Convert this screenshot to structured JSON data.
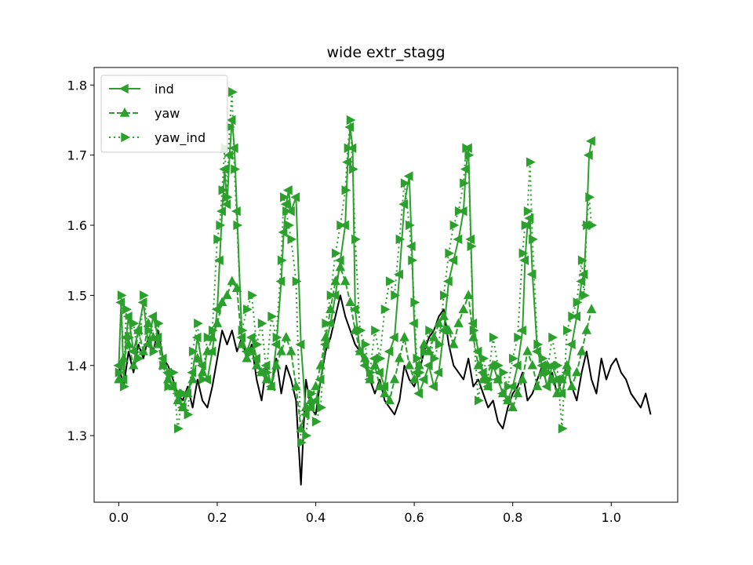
{
  "chart_data": {
    "type": "line",
    "title": "wide extr_stagg",
    "xlabel": "",
    "ylabel": "",
    "xlim": [
      -0.05,
      1.135
    ],
    "ylim": [
      1.205,
      1.825
    ],
    "xticks": [
      0.0,
      0.2,
      0.4,
      0.6,
      0.8,
      1.0
    ],
    "xtick_labels": [
      "0.0",
      "0.2",
      "0.4",
      "0.6",
      "0.8",
      "1.0"
    ],
    "yticks": [
      1.3,
      1.4,
      1.5,
      1.6,
      1.7,
      1.8
    ],
    "ytick_labels": [
      "1.3",
      "1.4",
      "1.5",
      "1.6",
      "1.7",
      "1.8"
    ],
    "legend_position": "upper-left",
    "grid": false,
    "colors": {
      "baseline": "#000000",
      "series": "#2ca02c"
    },
    "baseline": {
      "color": "#000000",
      "x": [
        0.0,
        0.01,
        0.02,
        0.03,
        0.04,
        0.05,
        0.06,
        0.07,
        0.08,
        0.09,
        0.1,
        0.11,
        0.12,
        0.13,
        0.14,
        0.15,
        0.16,
        0.17,
        0.18,
        0.19,
        0.2,
        0.21,
        0.22,
        0.23,
        0.24,
        0.25,
        0.26,
        0.27,
        0.28,
        0.29,
        0.3,
        0.31,
        0.32,
        0.33,
        0.34,
        0.35,
        0.36,
        0.37,
        0.38,
        0.39,
        0.4,
        0.41,
        0.42,
        0.43,
        0.44,
        0.45,
        0.46,
        0.47,
        0.48,
        0.49,
        0.5,
        0.51,
        0.52,
        0.53,
        0.54,
        0.55,
        0.56,
        0.57,
        0.58,
        0.59,
        0.6,
        0.61,
        0.62,
        0.63,
        0.64,
        0.65,
        0.66,
        0.67,
        0.68,
        0.69,
        0.7,
        0.71,
        0.72,
        0.73,
        0.74,
        0.75,
        0.76,
        0.77,
        0.78,
        0.79,
        0.8,
        0.81,
        0.82,
        0.83,
        0.84,
        0.85,
        0.86,
        0.87,
        0.88,
        0.89,
        0.9,
        0.91,
        0.92,
        0.93,
        0.94,
        0.95,
        0.96,
        0.97,
        0.98,
        0.99,
        1.0,
        1.01,
        1.02,
        1.03,
        1.04,
        1.05,
        1.06,
        1.07,
        1.08
      ],
      "y": [
        1.4,
        1.37,
        1.42,
        1.39,
        1.43,
        1.41,
        1.44,
        1.42,
        1.45,
        1.41,
        1.4,
        1.38,
        1.36,
        1.35,
        1.37,
        1.34,
        1.38,
        1.35,
        1.34,
        1.37,
        1.41,
        1.45,
        1.43,
        1.45,
        1.42,
        1.44,
        1.41,
        1.43,
        1.38,
        1.35,
        1.4,
        1.37,
        1.41,
        1.36,
        1.4,
        1.38,
        1.35,
        1.23,
        1.38,
        1.34,
        1.33,
        1.38,
        1.42,
        1.44,
        1.47,
        1.5,
        1.47,
        1.45,
        1.43,
        1.42,
        1.4,
        1.38,
        1.36,
        1.38,
        1.35,
        1.34,
        1.33,
        1.35,
        1.4,
        1.38,
        1.37,
        1.39,
        1.42,
        1.44,
        1.45,
        1.47,
        1.48,
        1.43,
        1.4,
        1.39,
        1.38,
        1.41,
        1.37,
        1.38,
        1.36,
        1.34,
        1.35,
        1.32,
        1.31,
        1.34,
        1.36,
        1.37,
        1.39,
        1.35,
        1.36,
        1.38,
        1.4,
        1.37,
        1.39,
        1.36,
        1.38,
        1.4,
        1.37,
        1.35,
        1.39,
        1.42,
        1.38,
        1.36,
        1.41,
        1.38,
        1.4,
        1.41,
        1.39,
        1.38,
        1.36,
        1.35,
        1.34,
        1.36,
        1.33
      ]
    },
    "series": [
      {
        "name": "ind",
        "marker": "triangle-left",
        "dash": "solid",
        "x": [
          0.0,
          0.005,
          0.01,
          0.015,
          0.02,
          0.03,
          0.04,
          0.05,
          0.06,
          0.07,
          0.08,
          0.09,
          0.1,
          0.11,
          0.12,
          0.13,
          0.14,
          0.15,
          0.16,
          0.17,
          0.18,
          0.19,
          0.2,
          0.205,
          0.21,
          0.215,
          0.22,
          0.225,
          0.23,
          0.235,
          0.24,
          0.25,
          0.26,
          0.27,
          0.28,
          0.29,
          0.3,
          0.31,
          0.32,
          0.33,
          0.335,
          0.34,
          0.345,
          0.35,
          0.36,
          0.37,
          0.38,
          0.39,
          0.4,
          0.41,
          0.42,
          0.43,
          0.44,
          0.45,
          0.46,
          0.465,
          0.47,
          0.475,
          0.48,
          0.49,
          0.5,
          0.51,
          0.52,
          0.53,
          0.54,
          0.55,
          0.56,
          0.57,
          0.58,
          0.59,
          0.595,
          0.6,
          0.605,
          0.61,
          0.62,
          0.63,
          0.64,
          0.65,
          0.66,
          0.67,
          0.68,
          0.69,
          0.7,
          0.705,
          0.71,
          0.715,
          0.72,
          0.73,
          0.74,
          0.75,
          0.76,
          0.77,
          0.78,
          0.79,
          0.8,
          0.81,
          0.82,
          0.825,
          0.83,
          0.835,
          0.84,
          0.85,
          0.86,
          0.87,
          0.88,
          0.89,
          0.9,
          0.91,
          0.92,
          0.93,
          0.94,
          0.945,
          0.95,
          0.955,
          0.96
        ],
        "y": [
          1.4,
          1.49,
          1.38,
          1.44,
          1.47,
          1.42,
          1.45,
          1.49,
          1.43,
          1.47,
          1.44,
          1.41,
          1.39,
          1.37,
          1.36,
          1.34,
          1.36,
          1.39,
          1.44,
          1.4,
          1.38,
          1.42,
          1.48,
          1.55,
          1.62,
          1.68,
          1.63,
          1.7,
          1.75,
          1.71,
          1.62,
          1.44,
          1.42,
          1.44,
          1.41,
          1.39,
          1.4,
          1.37,
          1.43,
          1.52,
          1.59,
          1.63,
          1.65,
          1.62,
          1.64,
          1.43,
          1.33,
          1.34,
          1.35,
          1.38,
          1.43,
          1.46,
          1.5,
          1.55,
          1.6,
          1.69,
          1.74,
          1.71,
          1.48,
          1.42,
          1.4,
          1.38,
          1.41,
          1.39,
          1.37,
          1.42,
          1.44,
          1.53,
          1.63,
          1.67,
          1.57,
          1.46,
          1.39,
          1.36,
          1.38,
          1.4,
          1.37,
          1.39,
          1.45,
          1.52,
          1.55,
          1.58,
          1.62,
          1.68,
          1.71,
          1.58,
          1.46,
          1.42,
          1.39,
          1.37,
          1.4,
          1.38,
          1.36,
          1.35,
          1.37,
          1.4,
          1.45,
          1.55,
          1.6,
          1.61,
          1.53,
          1.42,
          1.4,
          1.37,
          1.4,
          1.38,
          1.36,
          1.39,
          1.43,
          1.47,
          1.52,
          1.53,
          1.6,
          1.7,
          1.72
        ]
      },
      {
        "name": "yaw",
        "marker": "triangle-up",
        "dash": "dashed",
        "x": [
          0.0,
          0.01,
          0.02,
          0.03,
          0.04,
          0.05,
          0.06,
          0.07,
          0.08,
          0.09,
          0.1,
          0.11,
          0.12,
          0.13,
          0.14,
          0.15,
          0.16,
          0.17,
          0.18,
          0.19,
          0.2,
          0.21,
          0.22,
          0.23,
          0.24,
          0.25,
          0.26,
          0.27,
          0.28,
          0.29,
          0.3,
          0.31,
          0.32,
          0.33,
          0.34,
          0.35,
          0.36,
          0.37,
          0.38,
          0.39,
          0.4,
          0.41,
          0.42,
          0.43,
          0.44,
          0.45,
          0.46,
          0.47,
          0.48,
          0.49,
          0.5,
          0.51,
          0.52,
          0.53,
          0.54,
          0.55,
          0.56,
          0.57,
          0.58,
          0.59,
          0.6,
          0.61,
          0.62,
          0.63,
          0.64,
          0.65,
          0.66,
          0.67,
          0.68,
          0.69,
          0.7,
          0.71,
          0.72,
          0.73,
          0.74,
          0.75,
          0.76,
          0.77,
          0.78,
          0.79,
          0.8,
          0.81,
          0.82,
          0.83,
          0.84,
          0.85,
          0.86,
          0.87,
          0.88,
          0.89,
          0.9,
          0.91,
          0.92,
          0.93,
          0.94,
          0.95,
          0.96
        ],
        "y": [
          1.38,
          1.41,
          1.43,
          1.4,
          1.45,
          1.42,
          1.46,
          1.44,
          1.43,
          1.4,
          1.38,
          1.37,
          1.35,
          1.34,
          1.36,
          1.38,
          1.41,
          1.39,
          1.42,
          1.44,
          1.46,
          1.49,
          1.5,
          1.52,
          1.51,
          1.43,
          1.41,
          1.42,
          1.4,
          1.39,
          1.38,
          1.37,
          1.4,
          1.42,
          1.44,
          1.42,
          1.37,
          1.31,
          1.34,
          1.35,
          1.37,
          1.4,
          1.44,
          1.48,
          1.52,
          1.54,
          1.52,
          1.49,
          1.45,
          1.42,
          1.41,
          1.38,
          1.4,
          1.37,
          1.36,
          1.35,
          1.38,
          1.41,
          1.44,
          1.4,
          1.38,
          1.4,
          1.43,
          1.42,
          1.44,
          1.46,
          1.47,
          1.45,
          1.43,
          1.46,
          1.48,
          1.5,
          1.44,
          1.4,
          1.38,
          1.37,
          1.4,
          1.38,
          1.36,
          1.35,
          1.34,
          1.36,
          1.38,
          1.42,
          1.4,
          1.37,
          1.39,
          1.4,
          1.38,
          1.36,
          1.38,
          1.4,
          1.37,
          1.39,
          1.42,
          1.45,
          1.48
        ]
      },
      {
        "name": "yaw_ind",
        "marker": "triangle-right",
        "dash": "dotted",
        "x": [
          0.0,
          0.005,
          0.01,
          0.015,
          0.02,
          0.03,
          0.04,
          0.05,
          0.06,
          0.07,
          0.08,
          0.09,
          0.1,
          0.11,
          0.12,
          0.13,
          0.14,
          0.15,
          0.16,
          0.17,
          0.18,
          0.19,
          0.2,
          0.205,
          0.21,
          0.215,
          0.22,
          0.225,
          0.23,
          0.235,
          0.24,
          0.25,
          0.26,
          0.27,
          0.28,
          0.29,
          0.3,
          0.31,
          0.32,
          0.33,
          0.335,
          0.34,
          0.345,
          0.35,
          0.36,
          0.37,
          0.38,
          0.39,
          0.4,
          0.41,
          0.42,
          0.43,
          0.44,
          0.45,
          0.46,
          0.465,
          0.47,
          0.475,
          0.48,
          0.49,
          0.5,
          0.51,
          0.52,
          0.53,
          0.54,
          0.55,
          0.56,
          0.57,
          0.58,
          0.59,
          0.595,
          0.6,
          0.605,
          0.61,
          0.62,
          0.63,
          0.64,
          0.65,
          0.66,
          0.67,
          0.68,
          0.69,
          0.7,
          0.705,
          0.71,
          0.715,
          0.72,
          0.73,
          0.74,
          0.75,
          0.76,
          0.77,
          0.78,
          0.79,
          0.8,
          0.81,
          0.82,
          0.825,
          0.83,
          0.835,
          0.84,
          0.85,
          0.86,
          0.87,
          0.88,
          0.89,
          0.9,
          0.91,
          0.92,
          0.93,
          0.94,
          0.945,
          0.95,
          0.955,
          0.96
        ],
        "y": [
          1.39,
          1.5,
          1.37,
          1.48,
          1.44,
          1.46,
          1.41,
          1.5,
          1.45,
          1.42,
          1.46,
          1.4,
          1.37,
          1.39,
          1.31,
          1.36,
          1.33,
          1.42,
          1.46,
          1.38,
          1.44,
          1.45,
          1.58,
          1.6,
          1.65,
          1.71,
          1.64,
          1.74,
          1.79,
          1.68,
          1.6,
          1.45,
          1.48,
          1.5,
          1.43,
          1.46,
          1.39,
          1.47,
          1.44,
          1.55,
          1.64,
          1.62,
          1.6,
          1.58,
          1.52,
          1.29,
          1.3,
          1.36,
          1.32,
          1.34,
          1.46,
          1.5,
          1.56,
          1.6,
          1.65,
          1.71,
          1.75,
          1.68,
          1.58,
          1.45,
          1.43,
          1.39,
          1.45,
          1.41,
          1.48,
          1.52,
          1.5,
          1.58,
          1.66,
          1.6,
          1.55,
          1.49,
          1.41,
          1.39,
          1.42,
          1.45,
          1.41,
          1.43,
          1.5,
          1.56,
          1.6,
          1.62,
          1.66,
          1.71,
          1.7,
          1.57,
          1.45,
          1.35,
          1.41,
          1.38,
          1.44,
          1.4,
          1.39,
          1.37,
          1.41,
          1.44,
          1.56,
          1.6,
          1.62,
          1.69,
          1.58,
          1.43,
          1.41,
          1.39,
          1.44,
          1.4,
          1.31,
          1.45,
          1.47,
          1.49,
          1.55,
          1.5,
          1.6,
          1.64,
          1.6
        ]
      }
    ]
  }
}
